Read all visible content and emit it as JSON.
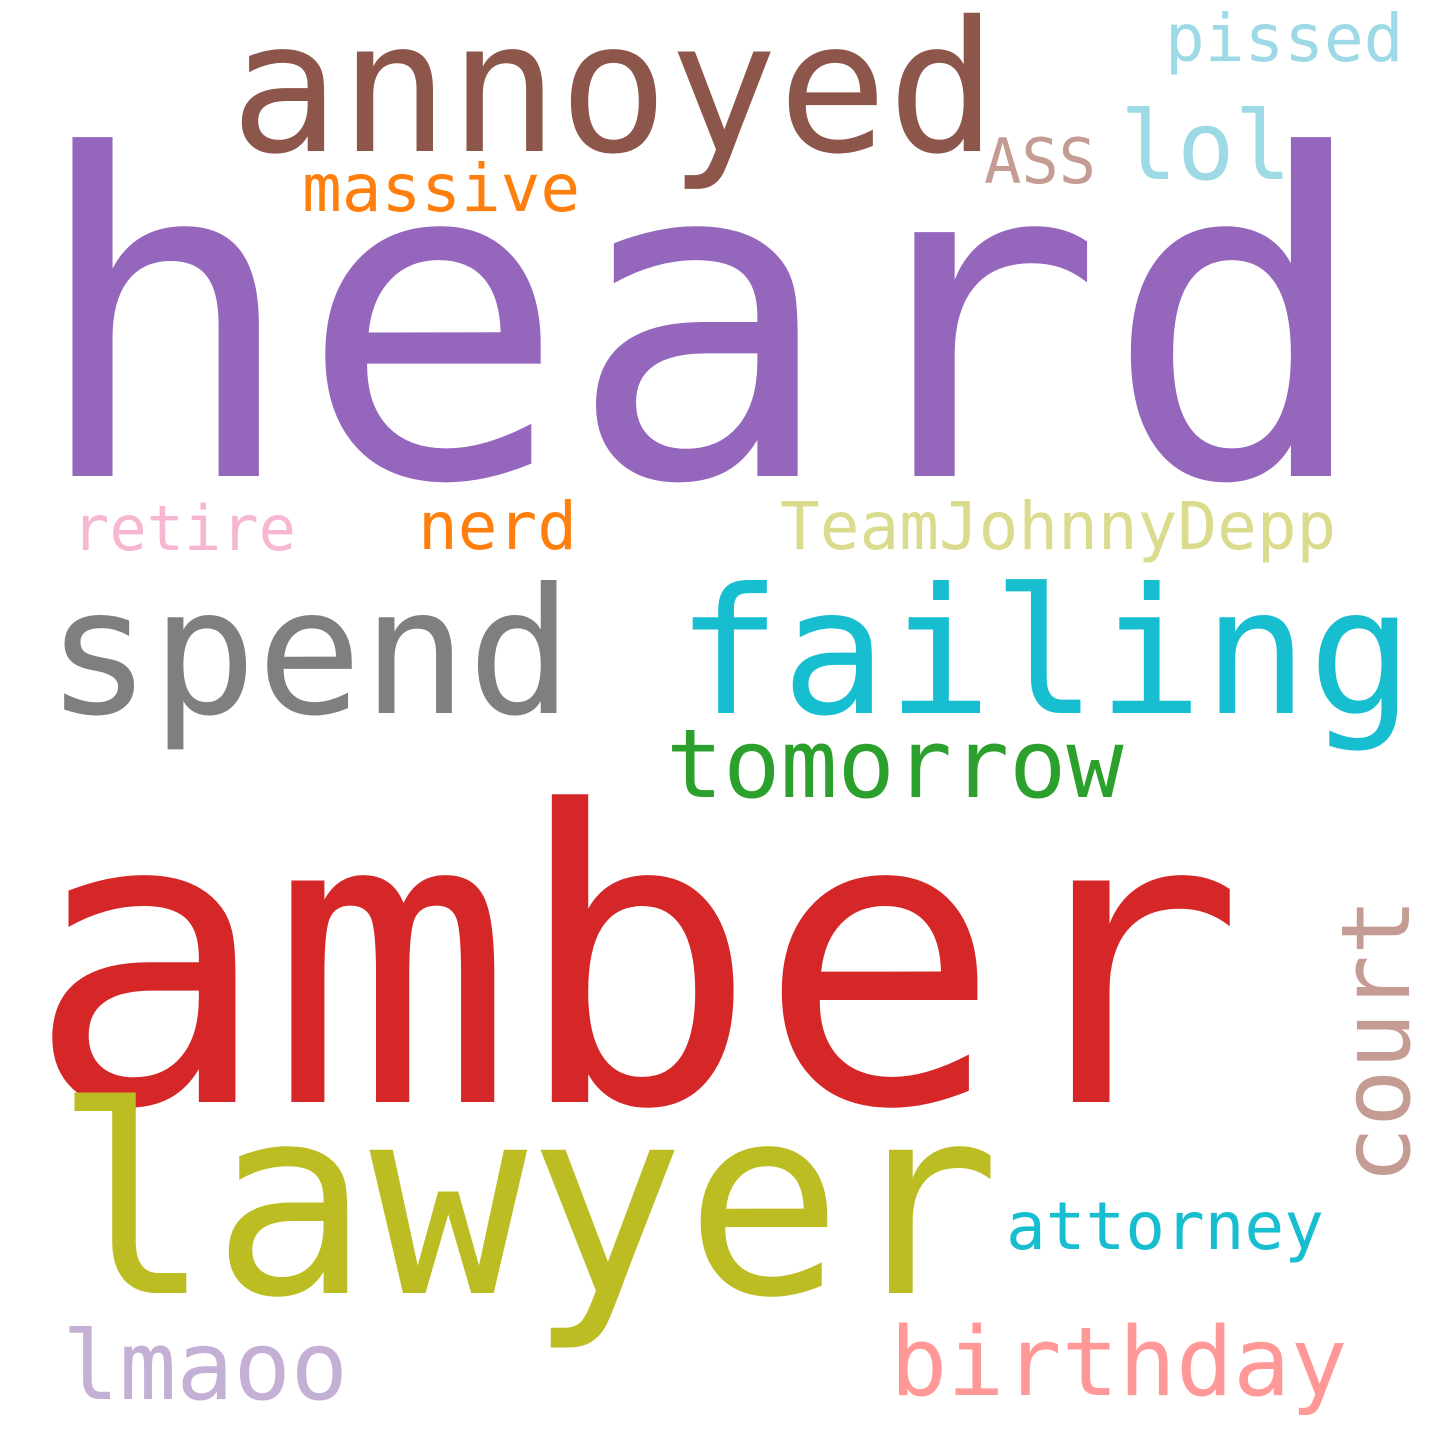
{
  "wordcloud": {
    "words": {
      "heard": {
        "text": "heard",
        "color": "#9467bd"
      },
      "amber": {
        "text": "amber",
        "color": "#d62728"
      },
      "lawyer": {
        "text": "lawyer",
        "color": "#bcbd22"
      },
      "annoyed": {
        "text": "annoyed",
        "color": "#8c564b"
      },
      "failing": {
        "text": "failing",
        "color": "#17becf"
      },
      "spend": {
        "text": "spend",
        "color": "#7f7f7f"
      },
      "tomorrow": {
        "text": "tomorrow",
        "color": "#2ca02c"
      },
      "court": {
        "text": "court",
        "color": "#c49c94"
      },
      "birthday": {
        "text": "birthday",
        "color": "#ff9896"
      },
      "lmaoo": {
        "text": "lmaoo",
        "color": "#c5b0d5"
      },
      "lol": {
        "text": "lol",
        "color": "#9edae5"
      },
      "attorney": {
        "text": "attorney",
        "color": "#17becf"
      },
      "massive": {
        "text": "massive",
        "color": "#ff7f0e"
      },
      "nerd": {
        "text": "nerd",
        "color": "#ff7f0e"
      },
      "teamjohnnydepp": {
        "text": "TeamJohnnyDepp",
        "color": "#dbdb8d"
      },
      "pissed": {
        "text": "pissed",
        "color": "#9edae5"
      },
      "retire": {
        "text": "retire",
        "color": "#f7b6d2"
      },
      "ass": {
        "text": "ASS",
        "color": "#c49c94"
      }
    }
  }
}
